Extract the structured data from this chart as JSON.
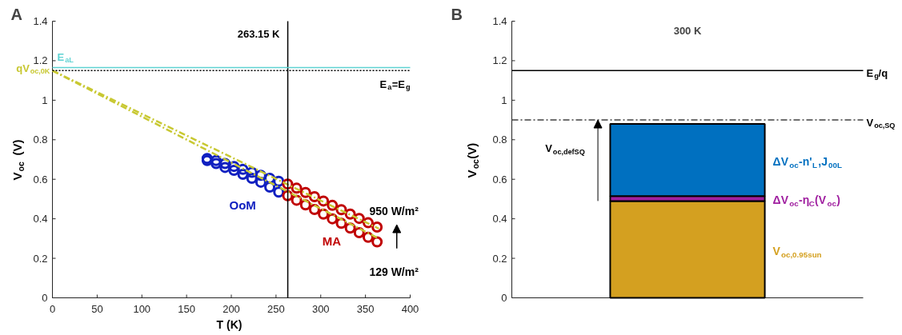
{
  "chart_data": [
    {
      "type": "scatter",
      "xlabel": "T (K)",
      "ylabel": "V$_{oc}$ (V)",
      "xlim": [
        0,
        400
      ],
      "ylim": [
        0,
        1.4
      ],
      "xticks": [
        0,
        50,
        100,
        150,
        200,
        250,
        300,
        350,
        400
      ],
      "yticks": [
        0,
        0.2,
        0.4,
        0.6,
        0.8,
        1,
        1.2,
        1.4
      ],
      "grid": false,
      "series": [
        {
          "name": "OoM",
          "color": "#1020c0",
          "marker": "circle",
          "x": [
            173,
            183,
            193,
            203,
            213,
            223,
            233,
            243,
            253
          ],
          "values": [
            0.705,
            0.695,
            0.68,
            0.665,
            0.65,
            0.635,
            0.62,
            0.605,
            0.59
          ]
        },
        {
          "color": "#1020c0",
          "marker": "circle",
          "x": [
            173,
            183,
            193,
            203,
            213,
            223,
            233,
            243,
            253
          ],
          "values": [
            0.695,
            0.68,
            0.66,
            0.645,
            0.625,
            0.605,
            0.585,
            0.56,
            0.535
          ]
        },
        {
          "name": "MA",
          "color": "#c00000",
          "marker": "circle",
          "x": [
            263,
            273,
            283,
            293,
            303,
            313,
            323,
            333,
            343,
            353,
            363
          ],
          "values": [
            0.576,
            0.555,
            0.533,
            0.512,
            0.49,
            0.468,
            0.446,
            0.424,
            0.402,
            0.38,
            0.358
          ]
        },
        {
          "color": "#c00000",
          "marker": "circle",
          "x": [
            263,
            273,
            283,
            293,
            303,
            313,
            323,
            333,
            343,
            353,
            363
          ],
          "values": [
            0.517,
            0.494,
            0.47,
            0.447,
            0.424,
            0.4,
            0.377,
            0.353,
            0.33,
            0.306,
            0.283
          ]
        },
        {
          "type": "line",
          "color": "#c8c832",
          "line_style": "dashed",
          "x": [
            0,
            365
          ],
          "values": [
            1.15,
            0.35
          ]
        },
        {
          "type": "line",
          "color": "#c8c832",
          "line_style": "dashed",
          "x": [
            0,
            365
          ],
          "values": [
            1.15,
            0.3
          ]
        }
      ],
      "ref_lines": [
        {
          "axis": "x",
          "value": 263.15,
          "label": "263.15 K",
          "color": "#000000"
        },
        {
          "axis": "y",
          "value": 1.165,
          "label": "E$_{aL}$",
          "color": "#5fd3d3"
        },
        {
          "axis": "y",
          "value": 1.15,
          "label": "E$_{a}$=E$_{g}$",
          "color": "#000000",
          "line_style": "dotted"
        }
      ],
      "annotations": [
        "A",
        "qV$_{oc,0K}$",
        "950 W/m²",
        "129 W/m²"
      ]
    },
    {
      "type": "bar",
      "stacked": true,
      "title": "300 K",
      "ylabel": "V$_{oc}$(V)",
      "categories": [
        null
      ],
      "ylim": [
        0,
        1.4
      ],
      "yticks": [
        0,
        0.2,
        0.4,
        0.6,
        0.8,
        1,
        1.2,
        1.4
      ],
      "grid": false,
      "series": [
        {
          "name": "V$_{oc,0.95sun}$",
          "color": "#d4a020",
          "values": [
            0.49
          ]
        },
        {
          "name": "ΔV$_{oc}$-η$_{C}$(V$_{oc}$)",
          "color": "#a020a0",
          "values": [
            0.025
          ]
        },
        {
          "name": "ΔV$_{oc}$-n'$_{L}$,J$_{00L}$",
          "color": "#0070c0",
          "values": [
            0.365
          ]
        }
      ],
      "ref_lines": [
        {
          "axis": "y",
          "value": 1.15,
          "label": "E$_{g}$/q",
          "color": "#000000"
        },
        {
          "axis": "y",
          "value": 0.9,
          "label": "V$_{oc,SQ}$",
          "color": "#404040",
          "line_style": "dashed"
        }
      ],
      "annotations": [
        "B",
        "V$_{oc,defSQ}$"
      ]
    }
  ]
}
